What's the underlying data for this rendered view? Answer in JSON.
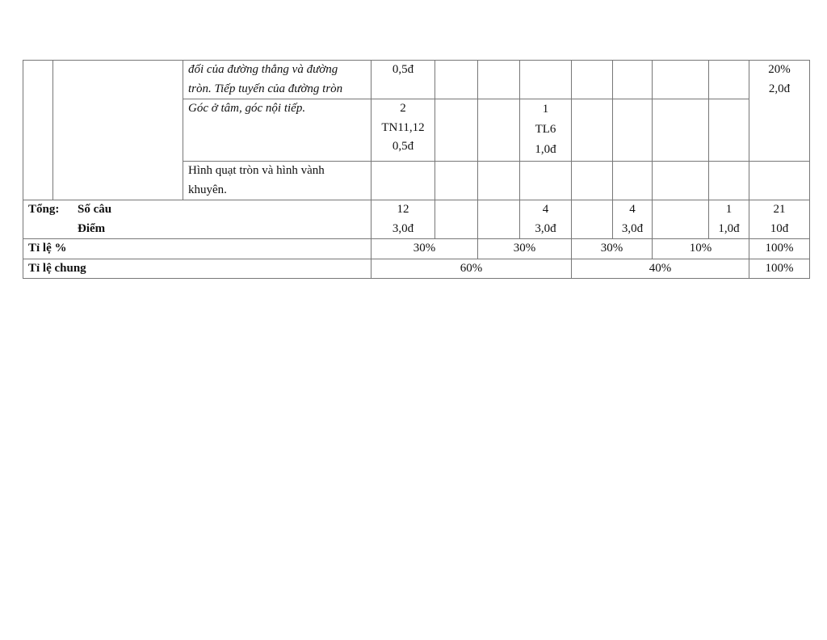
{
  "rows": {
    "r1": {
      "topic": [
        "đối của đường thẳng và đường",
        "tròn. Tiếp tuyến của đường tròn"
      ],
      "c4": "0,5đ",
      "total": [
        "20%",
        "2,0đ"
      ]
    },
    "r2": {
      "topic": "Góc ở tâm, góc nội tiếp.",
      "c4": [
        "2",
        "TN11,12",
        "0,5đ"
      ],
      "c7": [
        "1",
        "TL6",
        "1,0đ"
      ]
    },
    "r3": {
      "topic": [
        "Hình quạt tròn và hình vành",
        "khuyên."
      ]
    },
    "total": {
      "label": "Tổng:",
      "count_label": "Số câu",
      "score_label": "Điểm",
      "c4": [
        "12",
        "3,0đ"
      ],
      "c7": [
        "4",
        "3,0đ"
      ],
      "c9": [
        "4",
        "3,0đ"
      ],
      "c11": [
        "1",
        "1,0đ"
      ],
      "c12": [
        "21",
        "10đ"
      ]
    },
    "percent": {
      "label": "Tỉ lệ %",
      "values": [
        "30%",
        "30%",
        "30%",
        "10%",
        "100%"
      ]
    },
    "overall": {
      "label": "Tỉ lệ chung",
      "values": [
        "60%",
        "40%",
        "100%"
      ]
    }
  }
}
